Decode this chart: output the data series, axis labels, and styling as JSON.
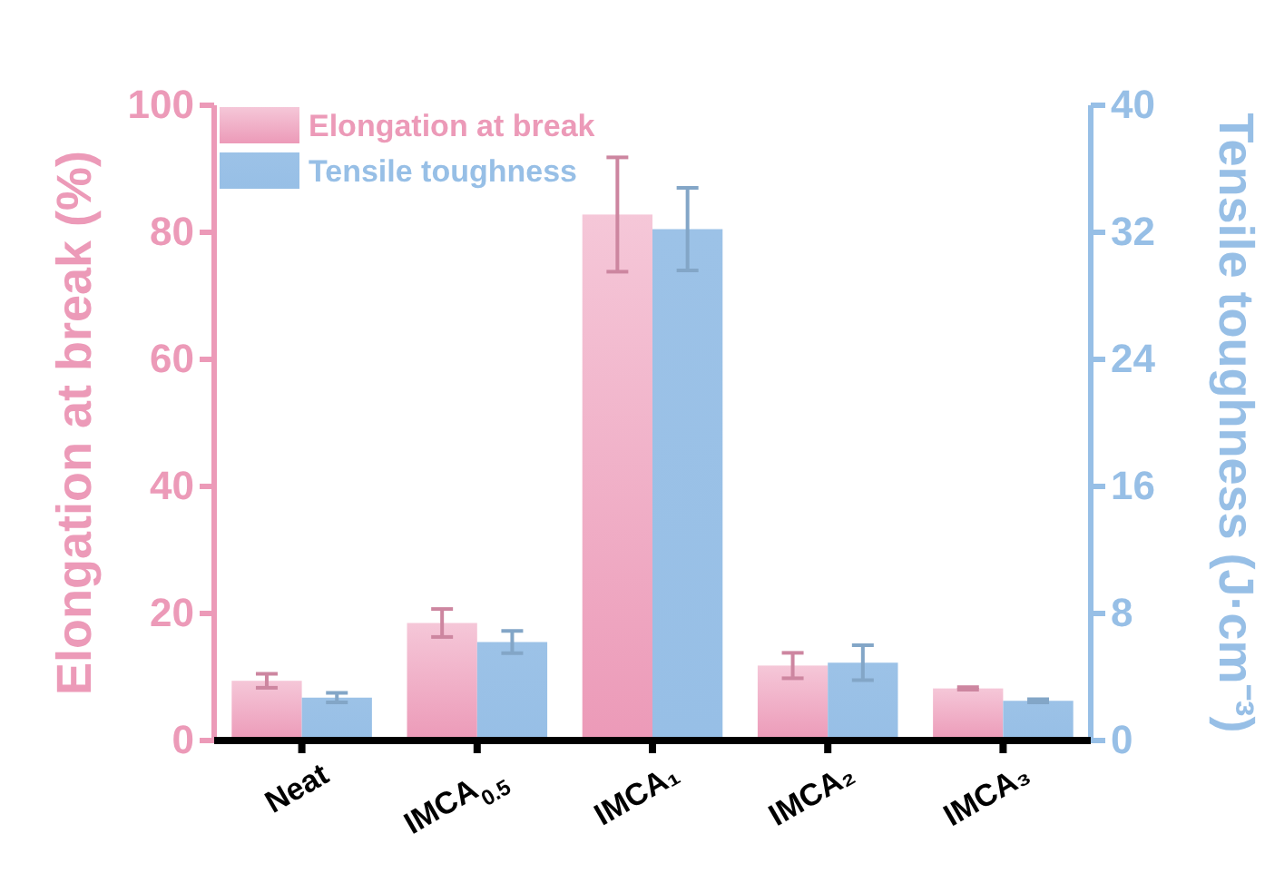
{
  "chart_data": {
    "type": "bar",
    "xlabel": null,
    "ylabel": "Elongation at break (%)",
    "y2label": "Tensile toughness (J·cm⁻³)",
    "categories": [
      "Neat",
      "IMCA$_{0.5}$",
      "IMCA₁",
      "IMCA₂",
      "IMCA₃"
    ],
    "series": [
      {
        "name": "Elongation at break",
        "color": "#ec9ab8",
        "values": [
          9.4,
          18.5,
          82.8,
          11.8,
          8.2
        ],
        "errors": [
          1.1,
          2.2,
          9,
          2,
          0.2
        ]
      },
      {
        "name": "Tensile toughness",
        "color": "#97bfe6",
        "axis": "y2",
        "values": [
          2.7,
          6.2,
          32.2,
          4.9,
          2.5
        ],
        "errors": [
          0.3,
          0.7,
          2.6,
          1.1,
          0.1
        ]
      }
    ],
    "ylim": [
      0,
      100
    ],
    "yticks": [
      0,
      20,
      40,
      60,
      80,
      100
    ],
    "y2lim": [
      0,
      40
    ],
    "y2ticks": [
      0,
      8,
      16,
      24,
      32,
      40
    ],
    "legend": "top left",
    "grid": false
  }
}
